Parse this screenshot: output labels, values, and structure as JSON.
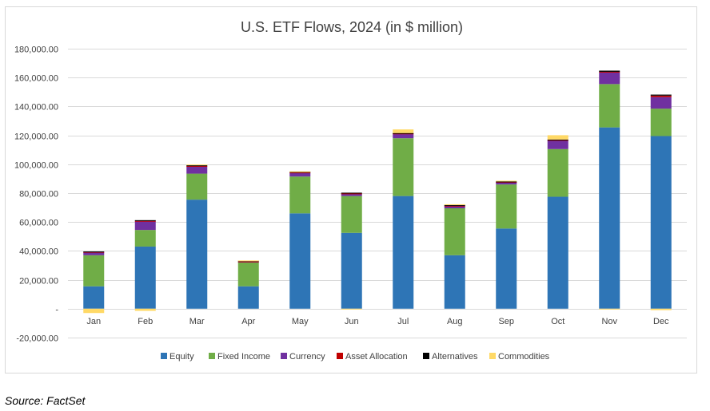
{
  "chart_data": {
    "type": "stacked-bar",
    "title": "U.S. ETF Flows, 2024 (in $ million)",
    "xlabel": "",
    "ylabel": "",
    "ylim": [
      -20000,
      180000
    ],
    "yticks": [
      {
        "value": 180000,
        "label": "180,000.00"
      },
      {
        "value": 160000,
        "label": "160,000.00"
      },
      {
        "value": 140000,
        "label": "140,000.00"
      },
      {
        "value": 120000,
        "label": "120,000.00"
      },
      {
        "value": 100000,
        "label": "100,000.00"
      },
      {
        "value": 80000,
        "label": "80,000.00"
      },
      {
        "value": 60000,
        "label": "60,000.00"
      },
      {
        "value": 40000,
        "label": "40,000.00"
      },
      {
        "value": 20000,
        "label": "20,000.00"
      },
      {
        "value": 0,
        "label": "-"
      },
      {
        "value": -20000,
        "label": "-20,000.00"
      }
    ],
    "grid": true,
    "legend_position": "bottom",
    "categories": [
      "Jan",
      "Feb",
      "Mar",
      "Apr",
      "May",
      "Jun",
      "Jul",
      "Aug",
      "Sep",
      "Oct",
      "Nov",
      "Dec"
    ],
    "series": [
      {
        "name": "Equity",
        "color": "#2e75b6",
        "values": [
          15500,
          43000,
          75500,
          15500,
          66000,
          52500,
          78000,
          37000,
          55500,
          77500,
          125500,
          119500
        ]
      },
      {
        "name": "Fixed Income",
        "color": "#70ad47",
        "values": [
          21500,
          11500,
          18000,
          16500,
          25500,
          25500,
          40000,
          32500,
          30500,
          33000,
          30000,
          19000
        ]
      },
      {
        "name": "Currency",
        "color": "#7030a0",
        "values": [
          2000,
          6000,
          5000,
          500,
          2500,
          1500,
          3000,
          1500,
          1500,
          6000,
          8000,
          8000
        ]
      },
      {
        "name": "Asset Allocation",
        "color": "#c00000",
        "values": [
          300,
          300,
          300,
          200,
          300,
          300,
          300,
          300,
          300,
          300,
          500,
          1000
        ]
      },
      {
        "name": "Alternatives",
        "color": "#000000",
        "values": [
          300,
          500,
          500,
          500,
          500,
          500,
          300,
          500,
          300,
          300,
          800,
          700
        ]
      },
      {
        "name": "Commodities",
        "color": "#ffd966",
        "values": [
          -3000,
          -1500,
          500,
          200,
          300,
          -300,
          2500,
          500,
          500,
          3000,
          -300,
          -1000
        ]
      }
    ]
  },
  "source_text": "Source: FactSet"
}
